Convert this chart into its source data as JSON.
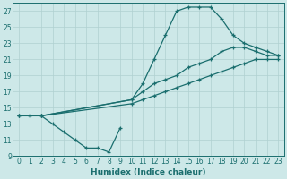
{
  "xlabel": "Humidex (Indice chaleur)",
  "xlim": [
    -0.5,
    23.5
  ],
  "ylim": [
    9,
    28
  ],
  "xticks": [
    0,
    1,
    2,
    3,
    4,
    5,
    6,
    7,
    8,
    9,
    10,
    11,
    12,
    13,
    14,
    15,
    16,
    17,
    18,
    19,
    20,
    21,
    22,
    23
  ],
  "yticks": [
    9,
    11,
    13,
    15,
    17,
    19,
    21,
    23,
    25,
    27
  ],
  "background_color": "#cde8e8",
  "grid_color": "#b0d0d0",
  "line_color": "#1a6e6e",
  "series": [
    {
      "x": [
        0,
        1,
        2,
        3,
        4,
        5,
        6,
        7,
        8,
        9
      ],
      "y": [
        14,
        14,
        14,
        13,
        12,
        11,
        10,
        10,
        9.5,
        12.5
      ]
    },
    {
      "x": [
        0,
        1,
        2,
        10,
        11,
        12,
        13,
        14,
        15,
        16,
        17,
        18,
        19,
        20,
        21,
        22,
        23
      ],
      "y": [
        14,
        14,
        14,
        15.5,
        16,
        16.5,
        17,
        17.5,
        18,
        18.5,
        19,
        19.5,
        20,
        20.5,
        21,
        21,
        21
      ]
    },
    {
      "x": [
        0,
        1,
        2,
        10,
        11,
        12,
        13,
        14,
        15,
        16,
        17,
        18,
        19,
        20,
        21,
        22,
        23
      ],
      "y": [
        14,
        14,
        14,
        16,
        17,
        18,
        18.5,
        19,
        20,
        20.5,
        21,
        22,
        22.5,
        22.5,
        22,
        21.5,
        21.5
      ]
    },
    {
      "x": [
        2,
        10,
        11,
        12,
        13,
        14,
        15,
        16,
        17,
        18,
        19,
        20,
        21,
        22,
        23
      ],
      "y": [
        14,
        16,
        18,
        21,
        24,
        27,
        27.5,
        27.5,
        27.5,
        26,
        24,
        23,
        22.5,
        22,
        21.5
      ]
    }
  ]
}
